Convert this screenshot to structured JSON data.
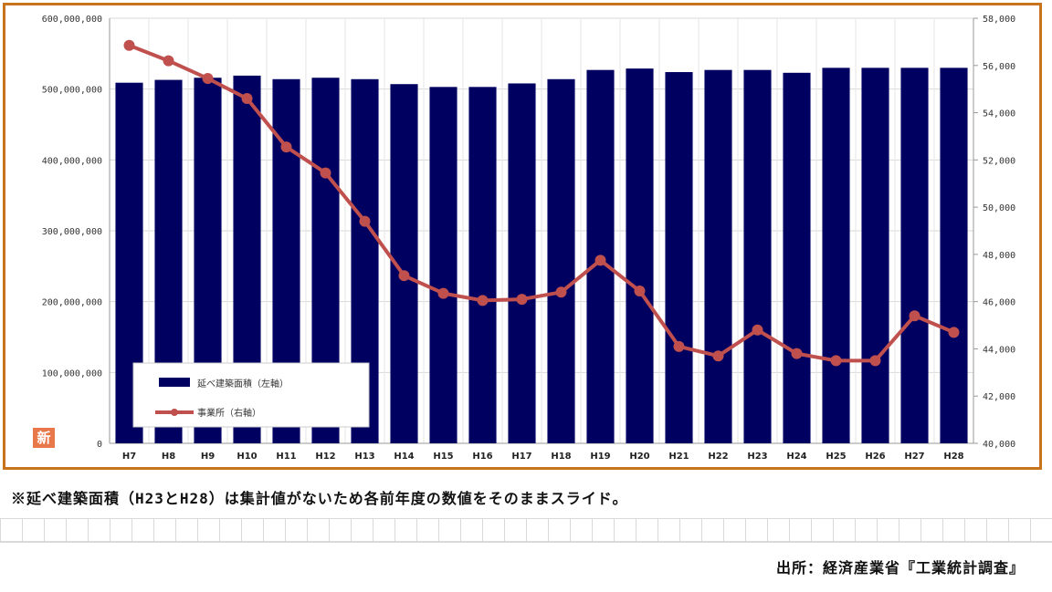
{
  "chart_data": {
    "type": "bar",
    "categories": [
      "H7",
      "H8",
      "H9",
      "H10",
      "H11",
      "H12",
      "H13",
      "H14",
      "H15",
      "H16",
      "H17",
      "H18",
      "H19",
      "H20",
      "H21",
      "H22",
      "H23",
      "H24",
      "H25",
      "H26",
      "H27",
      "H28"
    ],
    "series": [
      {
        "name": "延べ建築面積（左軸）",
        "type": "bar",
        "axis": "left",
        "color": "#000060",
        "values": [
          509000000,
          513000000,
          516000000,
          519000000,
          514000000,
          516000000,
          514000000,
          507000000,
          503000000,
          503000000,
          508000000,
          514000000,
          527000000,
          529000000,
          524000000,
          527000000,
          527000000,
          523000000,
          530000000,
          530000000,
          530000000,
          530000000
        ]
      },
      {
        "name": "事業所（右軸）",
        "type": "line",
        "axis": "right",
        "color": "#c0504d",
        "values": [
          56850,
          56200,
          55450,
          54600,
          52550,
          51450,
          49400,
          47100,
          46350,
          46050,
          46100,
          46400,
          47750,
          46450,
          44100,
          43700,
          44800,
          43800,
          43500,
          43500,
          45400,
          44700
        ]
      }
    ],
    "y_left": {
      "ylim": [
        0,
        600000000
      ],
      "ticks": [
        "0",
        "100,000,000",
        "200,000,000",
        "300,000,000",
        "400,000,000",
        "500,000,000",
        "600,000,000"
      ]
    },
    "y_right": {
      "ylim": [
        40000,
        58000
      ],
      "ticks": [
        "40,000",
        "42,000",
        "44,000",
        "46,000",
        "48,000",
        "50,000",
        "52,000",
        "54,000",
        "56,000",
        "58,000"
      ]
    },
    "grid": true,
    "legend_position": "bottom-left"
  },
  "note": "※延べ建築面積（H23とH28）は集計値がないため各前年度の数値をそのままスライド。",
  "source": "出所：経済産業省『工業統計調査』",
  "logo_glyph": "新"
}
